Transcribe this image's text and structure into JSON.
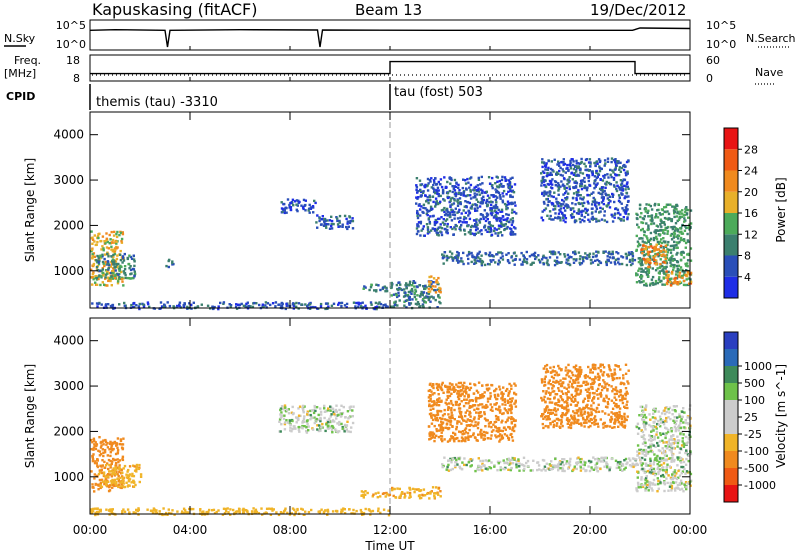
{
  "header": {
    "station": "Kapuskasing (fitACF)",
    "beam": "Beam 13",
    "date": "19/Dec/2012"
  },
  "param_panel": {
    "nsky_label": "N.Sky",
    "nsky_ticks": [
      "10^5",
      "10^0"
    ],
    "nsearch_label": "N.Search",
    "nsearch_ticks": [
      "10^5",
      "10^0"
    ],
    "freq_label": "Freq.",
    "freq_unit": "[MHz]",
    "freq_ticks": [
      "18",
      "8"
    ],
    "nave_label": "Nave",
    "nave_ticks": [
      "60",
      "0"
    ],
    "cpid_label": "CPID",
    "cpid_segments": [
      {
        "label": "themis (tau) -3310",
        "start_hour": 0,
        "end_hour": 12
      },
      {
        "label": "tau (fost) 503",
        "start_hour": 12,
        "end_hour": 24
      }
    ]
  },
  "colors": {
    "power": [
      "#1f2ee6",
      "#2a4fb8",
      "#3b7f6e",
      "#4caa5a",
      "#e8b02a",
      "#f08a1e",
      "#f05a14",
      "#e81414"
    ],
    "velocity": [
      "#2a3fc0",
      "#2a6ab8",
      "#3e8a5a",
      "#6ec24a",
      "#cccccc",
      "#cccccc",
      "#f0b428",
      "#f08a1e",
      "#f05a14",
      "#e81414"
    ]
  },
  "chart_data": [
    {
      "type": "line",
      "title": "N.Sky / N.Search",
      "x_range_hours": [
        0,
        24
      ],
      "y_scale": "log",
      "series": [
        {
          "name": "N.Sky",
          "x": [
            0,
            1,
            3,
            3.1,
            3.2,
            6,
            9.1,
            9.2,
            9.3,
            14,
            21.7,
            22,
            24
          ],
          "y": [
            3000,
            4000,
            3000,
            1,
            3000,
            4000,
            3500,
            1,
            3500,
            3000,
            3000,
            9000,
            7000
          ]
        }
      ]
    },
    {
      "type": "line",
      "title": "Freq / Nave",
      "x_range_hours": [
        0,
        24
      ],
      "series": [
        {
          "name": "Freq.",
          "x": [
            0,
            12,
            12,
            21.8,
            21.8,
            24
          ],
          "y": [
            10.8,
            10.8,
            16,
            16,
            10.8,
            10.8
          ]
        }
      ]
    },
    {
      "type": "heatmap",
      "title": "Power",
      "xlabel": "Time UT",
      "ylabel": "Slant Range [km]",
      "x_ticks": [
        "00:00",
        "04:00",
        "08:00",
        "12:00",
        "16:00",
        "20:00",
        "00:00"
      ],
      "y_ticks": [
        1000,
        2000,
        3000,
        4000
      ],
      "ylim": [
        180,
        4500
      ],
      "colorbar_label": "Power [dB]",
      "colorbar_ticks": [
        4,
        8,
        12,
        16,
        20,
        24,
        28
      ],
      "regions": [
        {
          "t0": 0.0,
          "t1": 1.3,
          "r0": 700,
          "r1": 1900,
          "v": 18
        },
        {
          "t0": 0.2,
          "t1": 1.8,
          "r0": 850,
          "r1": 1400,
          "v": 10
        },
        {
          "t0": 3.0,
          "t1": 3.3,
          "r0": 1100,
          "r1": 1300,
          "v": 8
        },
        {
          "t0": 0.0,
          "t1": 12.0,
          "r0": 180,
          "r1": 330,
          "v": 6
        },
        {
          "t0": 7.5,
          "t1": 9.0,
          "r0": 2300,
          "r1": 2600,
          "v": 5
        },
        {
          "t0": 9.0,
          "t1": 10.5,
          "r0": 1950,
          "r1": 2250,
          "v": 6
        },
        {
          "t0": 10.8,
          "t1": 12.0,
          "r0": 570,
          "r1": 720,
          "v": 10
        },
        {
          "t0": 12.0,
          "t1": 14.0,
          "r0": 200,
          "r1": 800,
          "v": 9
        },
        {
          "t0": 13.5,
          "t1": 14.0,
          "r0": 550,
          "r1": 900,
          "v": 20
        },
        {
          "t0": 13.0,
          "t1": 17.0,
          "r0": 1800,
          "r1": 3100,
          "v": 6
        },
        {
          "t0": 14.0,
          "t1": 21.8,
          "r0": 1150,
          "r1": 1450,
          "v": 8
        },
        {
          "t0": 18.0,
          "t1": 21.5,
          "r0": 2100,
          "r1": 3500,
          "v": 6
        },
        {
          "t0": 21.8,
          "t1": 24.0,
          "r0": 700,
          "r1": 2500,
          "v": 12
        },
        {
          "t0": 22.0,
          "t1": 23.0,
          "r0": 1100,
          "r1": 1600,
          "v": 22
        },
        {
          "t0": 23.0,
          "t1": 24.0,
          "r0": 700,
          "r1": 1050,
          "v": 22
        }
      ]
    },
    {
      "type": "heatmap",
      "title": "Velocity",
      "xlabel": "Time UT",
      "ylabel": "Slant Range [km]",
      "x_ticks": [
        "00:00",
        "04:00",
        "08:00",
        "12:00",
        "16:00",
        "20:00",
        "00:00"
      ],
      "y_ticks": [
        1000,
        2000,
        3000,
        4000
      ],
      "ylim": [
        180,
        4500
      ],
      "colorbar_label": "Velocity [m s^-1]",
      "colorbar_ticks": [
        1000,
        500,
        100,
        25,
        -25,
        -100,
        -500,
        -1000
      ],
      "regions": [
        {
          "t0": 0.0,
          "t1": 1.3,
          "r0": 700,
          "r1": 1900,
          "v": -200
        },
        {
          "t0": 0.3,
          "t1": 2.0,
          "r0": 800,
          "r1": 1300,
          "v": -80
        },
        {
          "t0": 0.0,
          "t1": 12.0,
          "r0": 180,
          "r1": 330,
          "v": -60
        },
        {
          "t0": 7.5,
          "t1": 10.5,
          "r0": 2000,
          "r1": 2600,
          "v": 0
        },
        {
          "t0": 10.8,
          "t1": 12.0,
          "r0": 570,
          "r1": 720,
          "v": -80
        },
        {
          "t0": 12.0,
          "t1": 14.0,
          "r0": 550,
          "r1": 800,
          "v": -90
        },
        {
          "t0": 13.5,
          "t1": 17.0,
          "r0": 1800,
          "r1": 3100,
          "v": -300
        },
        {
          "t0": 14.0,
          "t1": 21.8,
          "r0": 1150,
          "r1": 1450,
          "v": 0
        },
        {
          "t0": 18.0,
          "t1": 21.5,
          "r0": 2100,
          "r1": 3500,
          "v": -400
        },
        {
          "t0": 21.8,
          "t1": 24.0,
          "r0": 700,
          "r1": 2600,
          "v": 0
        }
      ]
    }
  ]
}
